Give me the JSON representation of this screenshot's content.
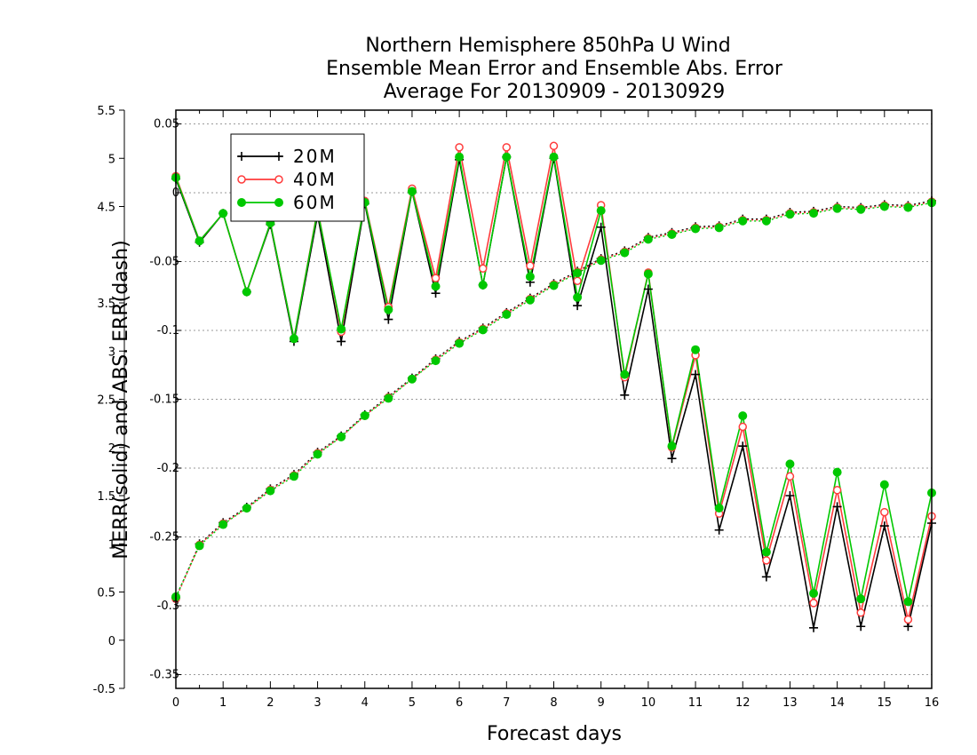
{
  "chart_data": {
    "type": "line",
    "title_lines": [
      "Northern Hemisphere 850hPa U Wind",
      "Ensemble Mean Error and Ensemble Abs. Error",
      "Average For 20130909 - 20130929"
    ],
    "xlabel": "Forecast days",
    "ylabel": "MERR(solid) and ABS. ERR(dash)",
    "xlim": [
      0,
      16
    ],
    "x_ticks": [
      "0",
      "1",
      "2",
      "3",
      "4",
      "5",
      "6",
      "7",
      "8",
      "9",
      "10",
      "11",
      "12",
      "13",
      "14",
      "15",
      "16"
    ],
    "x_tick_values": [
      0,
      1,
      2,
      3,
      4,
      5,
      6,
      7,
      8,
      9,
      10,
      11,
      12,
      13,
      14,
      15,
      16
    ],
    "x_minor_ticks": [
      0.5,
      1.5,
      2.5,
      3.5,
      4.5,
      5.5,
      6.5,
      7.5,
      8.5,
      9.5,
      10.5,
      11.5,
      12.5,
      13.5,
      14.5,
      15.5
    ],
    "y_right_axis_title": "",
    "ylim_merr": [
      -0.36,
      0.06
    ],
    "ylim_abs": [
      -0.5,
      5.5
    ],
    "merr_ticks": [
      "0.05",
      "0",
      "-0.05",
      "-0.1",
      "-0.15",
      "-0.2",
      "-0.25",
      "-0.3",
      "-0.35"
    ],
    "merr_tick_values": [
      0.05,
      0,
      -0.05,
      -0.1,
      -0.15,
      -0.2,
      -0.25,
      -0.3,
      -0.35
    ],
    "abs_ticks": [
      "5.5",
      "5",
      "4.5",
      "3.5",
      "3",
      "2.5",
      "2",
      "1.5",
      "1",
      "0.5",
      "0",
      "-0.5"
    ],
    "abs_tick_values": [
      5.5,
      5,
      4.5,
      3.5,
      3,
      2.5,
      2,
      1.5,
      1,
      0.5,
      0,
      -0.5
    ],
    "grid": "horizontal dotted",
    "legend_position": "top-left",
    "x": [
      0,
      0.5,
      1,
      1.5,
      2,
      2.5,
      3,
      3.5,
      4,
      4.5,
      5,
      5.5,
      6,
      6.5,
      7,
      7.5,
      8,
      8.5,
      9,
      9.5,
      10,
      10.5,
      11,
      11.5,
      12,
      12.5,
      13,
      13.5,
      14,
      14.5,
      15,
      15.5,
      16
    ],
    "series": [
      {
        "name": "20M",
        "color": "#000000",
        "marker": "plus",
        "merr": [
          0.01,
          -0.036,
          -0.015,
          -0.072,
          -0.023,
          -0.108,
          -0.016,
          -0.108,
          -0.008,
          -0.092,
          0.001,
          -0.073,
          0.024,
          -0.067,
          0.026,
          -0.065,
          0.025,
          -0.082,
          -0.025,
          -0.147,
          -0.07,
          -0.193,
          -0.132,
          -0.245,
          -0.184,
          -0.279,
          -0.22,
          -0.316,
          -0.228,
          -0.315,
          -0.242,
          -0.315,
          -0.24
        ],
        "abs_err": [
          0.44,
          1.0,
          1.22,
          1.38,
          1.57,
          1.72,
          1.95,
          2.12,
          2.34,
          2.53,
          2.72,
          2.92,
          3.1,
          3.24,
          3.4,
          3.55,
          3.7,
          3.83,
          3.96,
          4.04,
          4.18,
          4.23,
          4.29,
          4.3,
          4.37,
          4.37,
          4.44,
          4.45,
          4.5,
          4.49,
          4.52,
          4.51,
          4.56
        ]
      },
      {
        "name": "40M",
        "color": "#ff3c3c",
        "marker": "circle",
        "merr": [
          0.012,
          -0.035,
          -0.015,
          -0.072,
          -0.022,
          -0.106,
          -0.012,
          -0.101,
          -0.006,
          -0.083,
          0.003,
          -0.062,
          0.033,
          -0.055,
          0.033,
          -0.053,
          0.034,
          -0.064,
          -0.009,
          -0.134,
          -0.058,
          -0.185,
          -0.118,
          -0.233,
          -0.17,
          -0.267,
          -0.206,
          -0.298,
          -0.216,
          -0.305,
          -0.232,
          -0.31,
          -0.235
        ],
        "abs_err": [
          0.43,
          0.99,
          1.21,
          1.37,
          1.56,
          1.71,
          1.94,
          2.11,
          2.33,
          2.52,
          2.71,
          2.91,
          3.09,
          3.23,
          3.39,
          3.54,
          3.69,
          3.82,
          3.95,
          4.03,
          4.17,
          4.22,
          4.28,
          4.29,
          4.36,
          4.36,
          4.43,
          4.44,
          4.49,
          4.48,
          4.51,
          4.5,
          4.55
        ]
      },
      {
        "name": "60M",
        "color": "#00c800",
        "marker": "filled-circle",
        "merr": [
          0.011,
          -0.035,
          -0.015,
          -0.072,
          -0.022,
          -0.106,
          -0.013,
          -0.099,
          -0.007,
          -0.085,
          0.001,
          -0.068,
          0.026,
          -0.067,
          0.026,
          -0.061,
          0.026,
          -0.076,
          -0.013,
          -0.132,
          -0.059,
          -0.184,
          -0.114,
          -0.229,
          -0.162,
          -0.261,
          -0.197,
          -0.291,
          -0.203,
          -0.295,
          -0.212,
          -0.297,
          -0.218
        ],
        "abs_err": [
          0.45,
          0.98,
          1.2,
          1.37,
          1.55,
          1.7,
          1.93,
          2.11,
          2.33,
          2.51,
          2.71,
          2.9,
          3.08,
          3.22,
          3.38,
          3.53,
          3.68,
          3.81,
          3.94,
          4.02,
          4.16,
          4.21,
          4.27,
          4.28,
          4.35,
          4.35,
          4.42,
          4.43,
          4.48,
          4.47,
          4.5,
          4.49,
          4.54
        ]
      }
    ]
  }
}
